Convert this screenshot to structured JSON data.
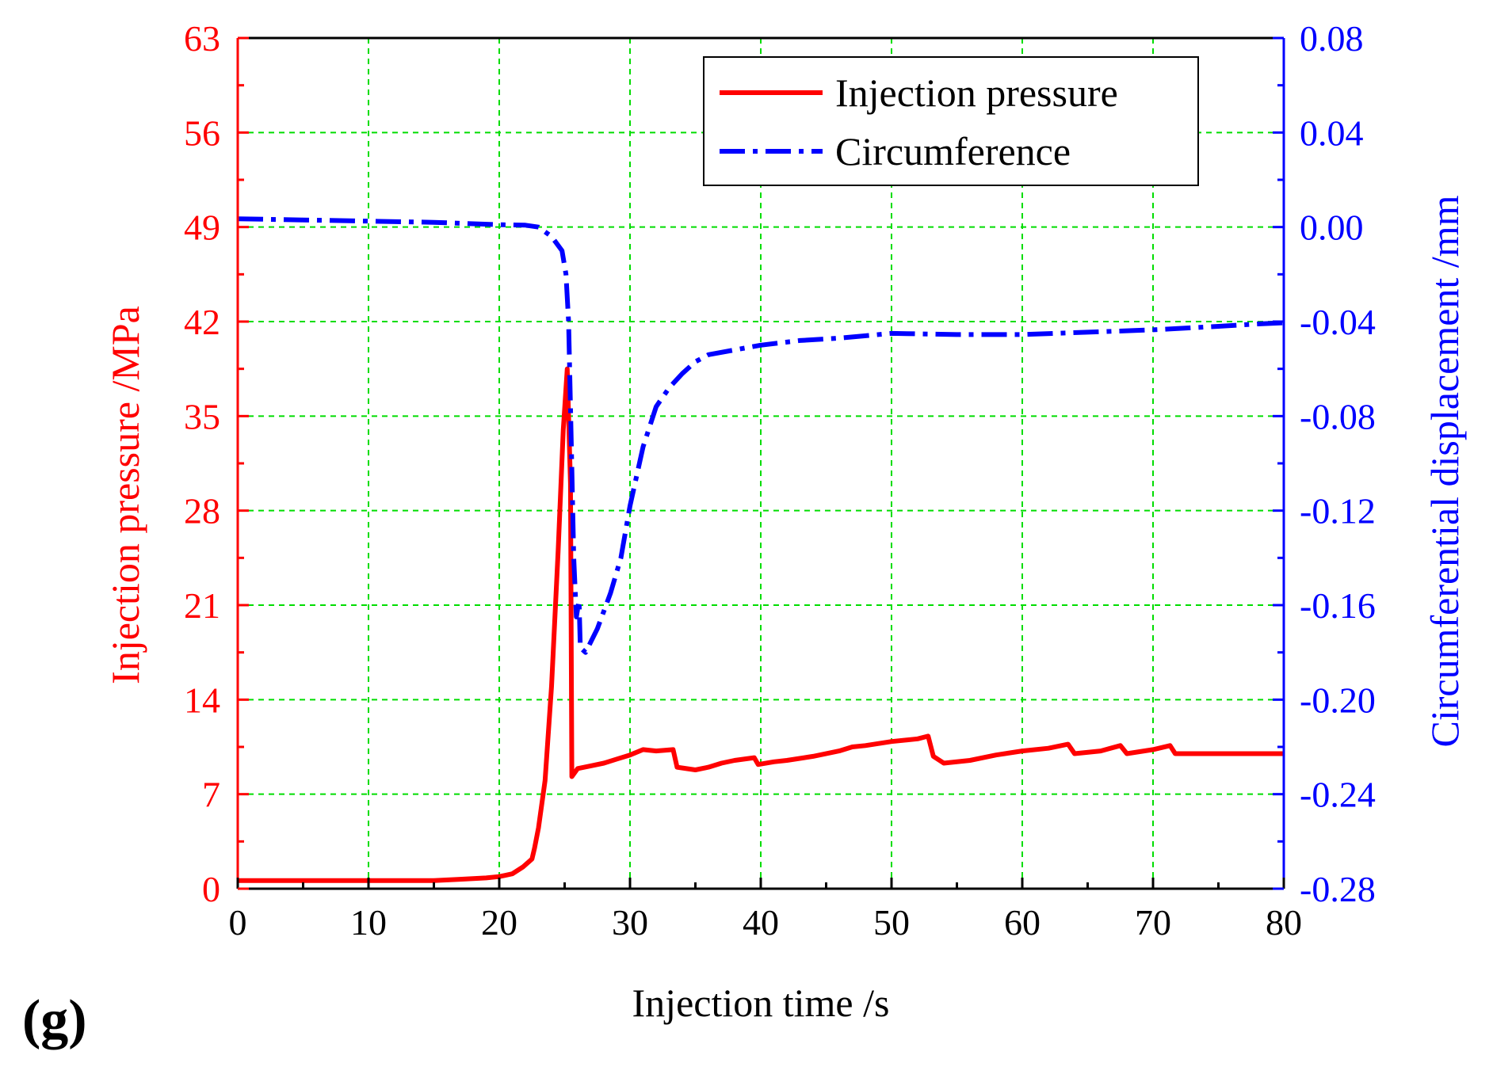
{
  "panel_label": "(g)",
  "colors": {
    "pressure": "#ff0000",
    "circumference": "#0000ff",
    "grid": "#00dd00",
    "axis": "#000000"
  },
  "chart_data": {
    "type": "line",
    "xlabel": "Injection time /s",
    "ylabel_left": "Injection pressure /MPa",
    "ylabel_right": "Circumferential displacement /mm",
    "xlim": [
      0,
      80
    ],
    "ylim_left": [
      0,
      63
    ],
    "ylim_right": [
      -0.28,
      0.08
    ],
    "x_ticks": [
      0,
      10,
      20,
      30,
      40,
      50,
      60,
      70,
      80
    ],
    "x_tick_labels": [
      "0",
      "10",
      "20",
      "30",
      "40",
      "50",
      "60",
      "70",
      "80"
    ],
    "y_left_ticks": [
      0,
      7,
      14,
      21,
      28,
      35,
      42,
      49,
      56,
      63
    ],
    "y_left_tick_labels": [
      "0",
      "7",
      "14",
      "21",
      "28",
      "35",
      "42",
      "49",
      "56",
      "63"
    ],
    "y_right_ticks": [
      -0.28,
      -0.24,
      -0.2,
      -0.16,
      -0.12,
      -0.08,
      -0.04,
      0.0,
      0.04,
      0.08
    ],
    "y_right_tick_labels": [
      "-0.28",
      "-0.24",
      "-0.20",
      "-0.16",
      "-0.12",
      "-0.08",
      "-0.04",
      "0.00",
      "0.04",
      "0.08"
    ],
    "grid": true,
    "legend_position": "top-right",
    "series": [
      {
        "name": "Injection pressure",
        "axis": "left",
        "style": "solid",
        "points": [
          [
            0,
            0.6
          ],
          [
            5,
            0.6
          ],
          [
            10,
            0.6
          ],
          [
            15,
            0.6
          ],
          [
            17,
            0.7
          ],
          [
            19,
            0.8
          ],
          [
            20,
            0.9
          ],
          [
            21,
            1.1
          ],
          [
            21.8,
            1.6
          ],
          [
            22.5,
            2.2
          ],
          [
            22.7,
            3.0
          ],
          [
            23,
            4.5
          ],
          [
            23.5,
            8
          ],
          [
            24,
            15
          ],
          [
            24.5,
            25
          ],
          [
            24.9,
            34
          ],
          [
            25.2,
            38.5
          ],
          [
            25.45,
            30
          ],
          [
            25.55,
            8.3
          ],
          [
            26,
            8.9
          ],
          [
            27,
            9.1
          ],
          [
            28,
            9.3
          ],
          [
            29,
            9.6
          ],
          [
            30,
            9.9
          ],
          [
            31,
            10.3
          ],
          [
            32,
            10.2
          ],
          [
            33.3,
            10.3
          ],
          [
            33.6,
            9.0
          ],
          [
            35,
            8.8
          ],
          [
            36,
            9.0
          ],
          [
            37,
            9.3
          ],
          [
            38,
            9.5
          ],
          [
            39.5,
            9.7
          ],
          [
            39.8,
            9.2
          ],
          [
            41,
            9.4
          ],
          [
            42,
            9.5
          ],
          [
            44,
            9.8
          ],
          [
            46,
            10.2
          ],
          [
            47,
            10.5
          ],
          [
            48,
            10.6
          ],
          [
            50,
            10.9
          ],
          [
            52,
            11.1
          ],
          [
            52.8,
            11.3
          ],
          [
            53.2,
            9.8
          ],
          [
            54,
            9.3
          ],
          [
            56,
            9.5
          ],
          [
            58,
            9.9
          ],
          [
            60,
            10.2
          ],
          [
            62,
            10.4
          ],
          [
            63.5,
            10.7
          ],
          [
            64,
            10.0
          ],
          [
            66,
            10.2
          ],
          [
            67.5,
            10.6
          ],
          [
            68,
            10.0
          ],
          [
            70,
            10.3
          ],
          [
            71.3,
            10.6
          ],
          [
            71.7,
            10.0
          ],
          [
            74,
            10.0
          ],
          [
            76,
            10.0
          ],
          [
            78,
            10.0
          ],
          [
            80,
            10.0
          ]
        ]
      },
      {
        "name": "Circumference",
        "axis": "right",
        "style": "dashdot",
        "points": [
          [
            0,
            0.0035
          ],
          [
            5,
            0.003
          ],
          [
            10,
            0.0025
          ],
          [
            15,
            0.002
          ],
          [
            20,
            0.001
          ],
          [
            22,
            0.0008
          ],
          [
            23,
            0.0
          ],
          [
            24,
            -0.004
          ],
          [
            24.8,
            -0.01
          ],
          [
            25.1,
            -0.02
          ],
          [
            25.3,
            -0.04
          ],
          [
            25.5,
            -0.09
          ],
          [
            25.7,
            -0.14
          ],
          [
            25.9,
            -0.165
          ],
          [
            26.1,
            -0.158
          ],
          [
            26.2,
            -0.178
          ],
          [
            26.6,
            -0.18
          ],
          [
            27.5,
            -0.17
          ],
          [
            28.5,
            -0.155
          ],
          [
            29.3,
            -0.14
          ],
          [
            30,
            -0.118
          ],
          [
            31,
            -0.093
          ],
          [
            32,
            -0.076
          ],
          [
            33,
            -0.068
          ],
          [
            34,
            -0.062
          ],
          [
            35,
            -0.057
          ],
          [
            36,
            -0.054
          ],
          [
            38,
            -0.052
          ],
          [
            40,
            -0.05
          ],
          [
            43,
            -0.048
          ],
          [
            46,
            -0.047
          ],
          [
            50,
            -0.045
          ],
          [
            55,
            -0.0455
          ],
          [
            60,
            -0.0455
          ],
          [
            65,
            -0.0445
          ],
          [
            70,
            -0.0435
          ],
          [
            75,
            -0.042
          ],
          [
            78,
            -0.041
          ],
          [
            80,
            -0.0405
          ]
        ]
      }
    ]
  }
}
